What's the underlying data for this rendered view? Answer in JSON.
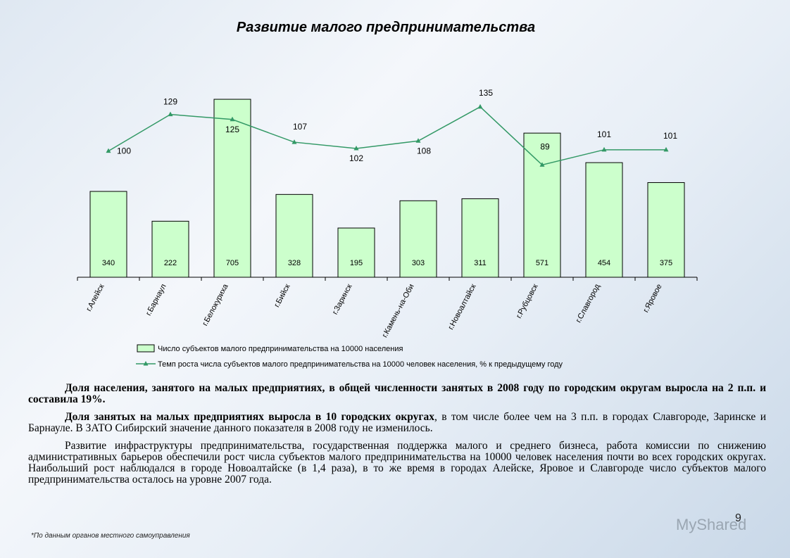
{
  "chart_data": {
    "type": "bar-line",
    "title": "Развитие малого предпринимательства",
    "categories": [
      "г.Алейск",
      "г.Барнаул",
      "г.Белокуриха",
      "г.Бийск",
      "г.Заринск",
      "г.Камень-на-Оби",
      "г.Новоалтайск",
      "г.Рубцовск",
      "г.Славгород",
      "г.Яровое"
    ],
    "series": [
      {
        "name": "Число субъектов малого предпринимательства на 10000 населения",
        "type": "bar",
        "color": "#ccffcc",
        "values": [
          340,
          222,
          705,
          328,
          195,
          303,
          311,
          571,
          454,
          375
        ]
      },
      {
        "name": "Темп роста числа субъектов малого предпринимательства на 10000 человек населения, % к предыдущему году",
        "type": "line",
        "axis": "y2",
        "color": "#339966",
        "values": [
          100,
          129,
          125,
          107,
          102,
          108,
          135,
          89,
          101,
          101
        ]
      }
    ],
    "ylim": [
      0,
      800
    ],
    "y2lim": [
      0,
      160
    ],
    "legend": "bottom"
  },
  "text": {
    "paragraphs": [
      [
        "Доля населения, занятого на малых предприятиях, в общей численности занятых в 2008 году по городским округам выросла на 2 п.п. и составила 19%."
      ],
      [
        "Доля занятых на малых предприятиях выросла в 10 городских округах",
        ", в том числе более чем на 3 п.п. в городах Славгороде, Заринске и Барнауле. В ЗАТО Сибирский значение данного показателя в 2008 году не изменилось."
      ],
      [
        "Развитие инфраструктуры предпринимательства, государственная поддержка малого и среднего бизнеса, работа комиссии по снижению административных барьеров обеспечили рост числа субъектов малого предпринимательства на 10000 человек населения почти во всех городских округах. Наибольший рост наблюдался в городе Новоалтайске (в 1,4 раза), в то же время в городах Алейске, Яровое и Славгороде число субъектов малого предпринимательства осталось на уровне 2007 года."
      ]
    ]
  },
  "footnote": "*По данным органов местного самоуправления",
  "page_number": "9",
  "watermark": "MyShared"
}
